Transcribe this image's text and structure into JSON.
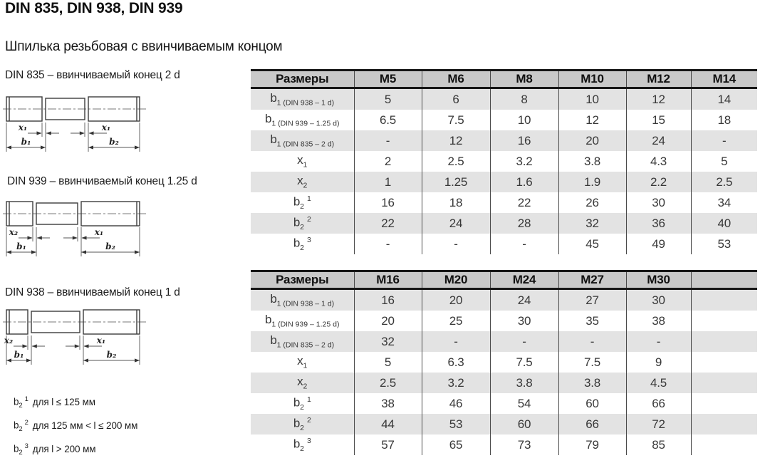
{
  "page": {
    "title": "DIN 835, DIN 938, DIN 939",
    "subtitle": "Шпилька резьбовая с ввинчиваемым концом"
  },
  "drawings": [
    {
      "caption": "DIN 835 – ввинчиваемый конец 2 d",
      "dims": {
        "left_x": "x₁",
        "left_b": "b₁",
        "right_x": "x₁",
        "right_b": "b₂"
      }
    },
    {
      "caption": "DIN 939 – ввинчиваемый конец 1.25 d",
      "dims": {
        "left_x": "x₂",
        "left_b": "b₁",
        "right_x": "x₁",
        "right_b": "b₂"
      }
    },
    {
      "caption": "DIN 938 – ввинчиваемый конец 1 d",
      "dims": {
        "left_x": "x₂",
        "left_b": "b₁",
        "right_x": "x₁",
        "right_b": "b₂"
      }
    }
  ],
  "footnotes": [
    {
      "base": "b",
      "sub": "2",
      "sup": "1",
      "text": "для l ≤ 125 мм"
    },
    {
      "base": "b",
      "sub": "2",
      "sup": "2",
      "text": "для 125 мм < l ≤ 200 мм"
    },
    {
      "base": "b",
      "sub": "2",
      "sup": "3",
      "text": "для l > 200 мм"
    }
  ],
  "tables": [
    {
      "header": [
        "Размеры",
        "M5",
        "M6",
        "M8",
        "M10",
        "M12",
        "M14"
      ],
      "rows": [
        {
          "base": "b",
          "sub": "1 (DIN 938 – 1 d)",
          "sup": "",
          "values": [
            "5",
            "6",
            "8",
            "10",
            "12",
            "14"
          ]
        },
        {
          "base": "b",
          "sub": "1 (DIN 939 – 1.25 d)",
          "sup": "",
          "values": [
            "6.5",
            "7.5",
            "10",
            "12",
            "15",
            "18"
          ]
        },
        {
          "base": "b",
          "sub": "1 (DIN 835 – 2 d)",
          "sup": "",
          "values": [
            "-",
            "12",
            "16",
            "20",
            "24",
            "-"
          ]
        },
        {
          "base": "x",
          "sub": "1",
          "sup": "",
          "values": [
            "2",
            "2.5",
            "3.2",
            "3.8",
            "4.3",
            "5"
          ]
        },
        {
          "base": "x",
          "sub": "2",
          "sup": "",
          "values": [
            "1",
            "1.25",
            "1.6",
            "1.9",
            "2.2",
            "2.5"
          ]
        },
        {
          "base": "b",
          "sub": "2",
          "sup": "1",
          "values": [
            "16",
            "18",
            "22",
            "26",
            "30",
            "34"
          ]
        },
        {
          "base": "b",
          "sub": "2",
          "sup": "2",
          "values": [
            "22",
            "24",
            "28",
            "32",
            "36",
            "40"
          ]
        },
        {
          "base": "b",
          "sub": "2",
          "sup": "3",
          "values": [
            "-",
            "-",
            "-",
            "45",
            "49",
            "53"
          ]
        }
      ]
    },
    {
      "header": [
        "Размеры",
        "M16",
        "M20",
        "M24",
        "M27",
        "M30",
        ""
      ],
      "rows": [
        {
          "base": "b",
          "sub": "1 (DIN 938 – 1 d)",
          "sup": "",
          "values": [
            "16",
            "20",
            "24",
            "27",
            "30",
            ""
          ]
        },
        {
          "base": "b",
          "sub": "1 (DIN 939 – 1.25 d)",
          "sup": "",
          "values": [
            "20",
            "25",
            "30",
            "35",
            "38",
            ""
          ]
        },
        {
          "base": "b",
          "sub": "1 (DIN 835 – 2 d)",
          "sup": "",
          "values": [
            "32",
            "-",
            "-",
            "-",
            "-",
            ""
          ]
        },
        {
          "base": "x",
          "sub": "1",
          "sup": "",
          "values": [
            "5",
            "6.3",
            "7.5",
            "7.5",
            "9",
            ""
          ]
        },
        {
          "base": "x",
          "sub": "2",
          "sup": "",
          "values": [
            "2.5",
            "3.2",
            "3.8",
            "3.8",
            "4.5",
            ""
          ]
        },
        {
          "base": "b",
          "sub": "2",
          "sup": "1",
          "values": [
            "38",
            "46",
            "54",
            "60",
            "66",
            ""
          ]
        },
        {
          "base": "b",
          "sub": "2",
          "sup": "2",
          "values": [
            "44",
            "53",
            "60",
            "66",
            "72",
            ""
          ]
        },
        {
          "base": "b",
          "sub": "2",
          "sup": "3",
          "values": [
            "57",
            "65",
            "73",
            "79",
            "85",
            ""
          ]
        }
      ]
    }
  ],
  "colors": {
    "header_bg": "#c9c9c9",
    "band_bg": "#e3e3e3",
    "border_dark": "#161616",
    "grid_line": "#4a4a4a",
    "text": "#383838"
  }
}
